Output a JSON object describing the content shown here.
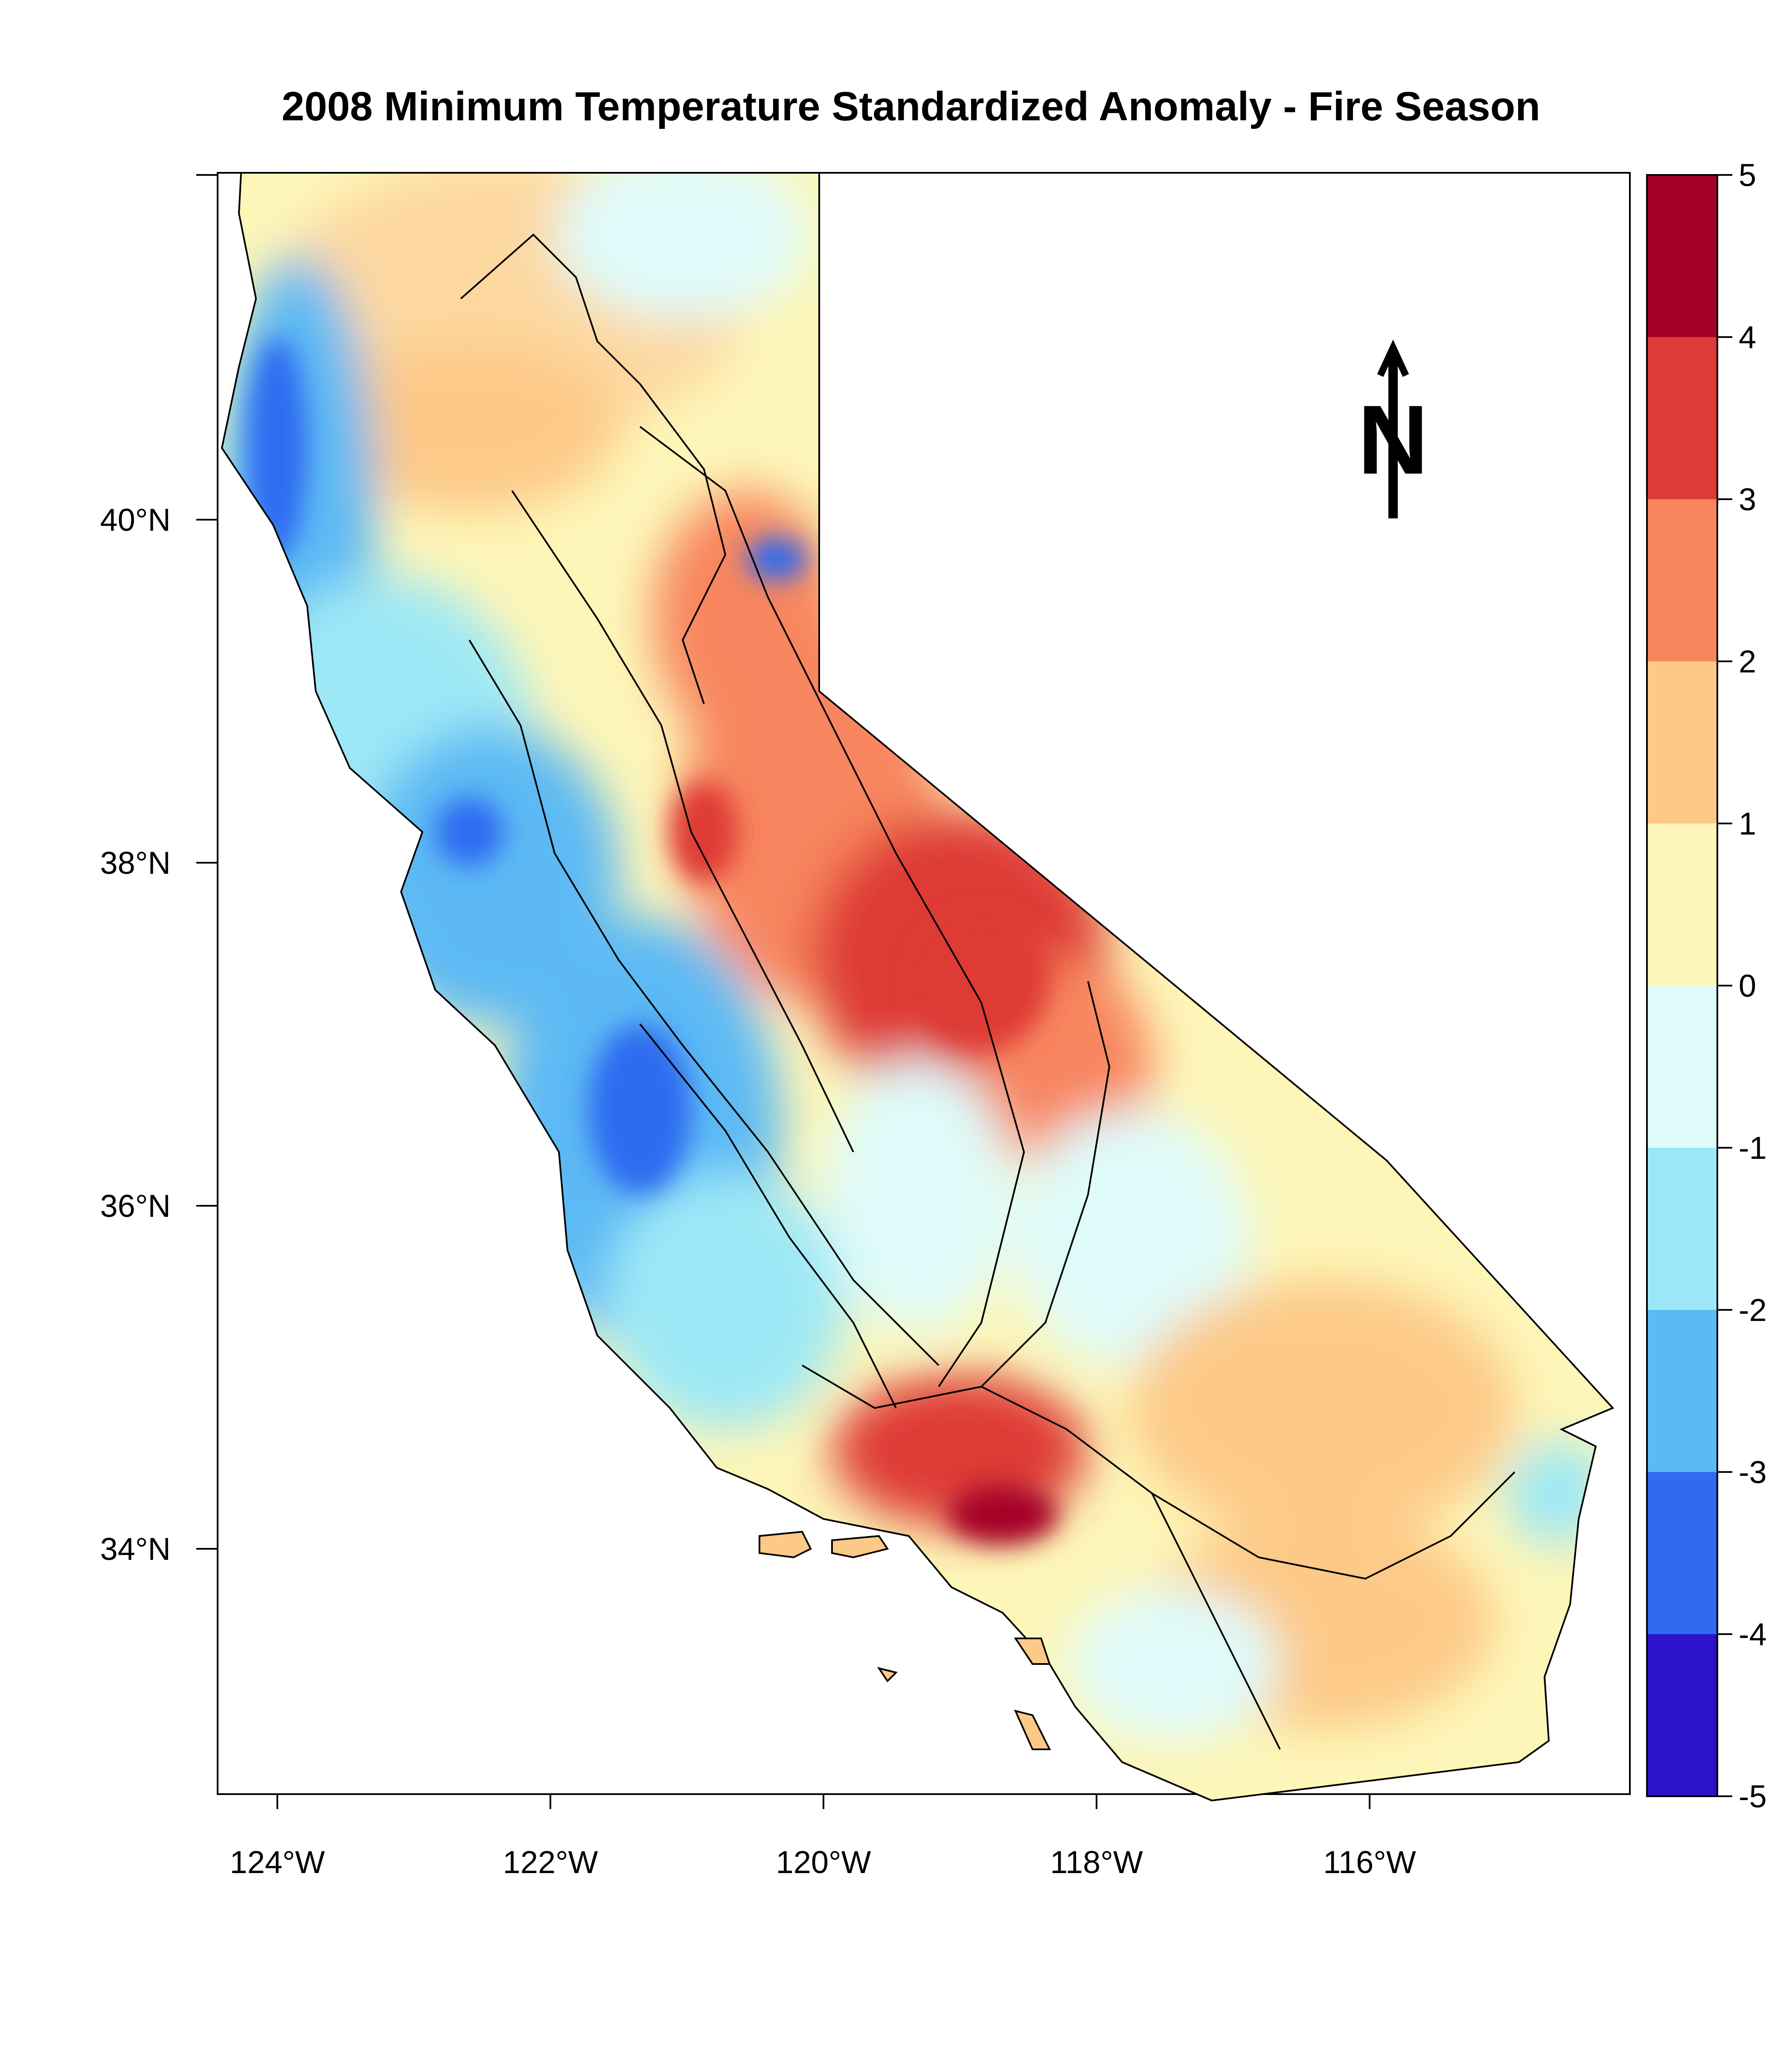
{
  "title": "2008 Minimum Temperature Standardized Anomaly - Fire Season",
  "map": {
    "region": "California",
    "x_ticks": [
      "124°W",
      "122°W",
      "120°W",
      "118°W",
      "116°W"
    ],
    "x_tick_values": [
      -124,
      -122,
      -120,
      -118,
      -116
    ],
    "y_ticks": [
      "40°N",
      "38°N",
      "36°N",
      "34°N"
    ],
    "y_tick_values": [
      40,
      38,
      36,
      34
    ],
    "north_arrow_label": "N"
  },
  "legend": {
    "ticks": [
      "5",
      "4",
      "3",
      "2",
      "1",
      "0",
      "-1",
      "-2",
      "-3",
      "-4",
      "-5"
    ],
    "bins": [
      {
        "from": 4,
        "to": 5,
        "color": "#a50026"
      },
      {
        "from": 3,
        "to": 4,
        "color": "#de3a36"
      },
      {
        "from": 2,
        "to": 3,
        "color": "#f8855e"
      },
      {
        "from": 1,
        "to": 2,
        "color": "#fdc987"
      },
      {
        "from": 0,
        "to": 1,
        "color": "#fdf6b8"
      },
      {
        "from": -1,
        "to": 0,
        "color": "#dffbfa"
      },
      {
        "from": -2,
        "to": -1,
        "color": "#9de8f6"
      },
      {
        "from": -3,
        "to": -2,
        "color": "#5bb9f4"
      },
      {
        "from": -4,
        "to": -3,
        "color": "#2f6af0"
      },
      {
        "from": -5,
        "to": -4,
        "color": "#2a13c9"
      }
    ]
  }
}
